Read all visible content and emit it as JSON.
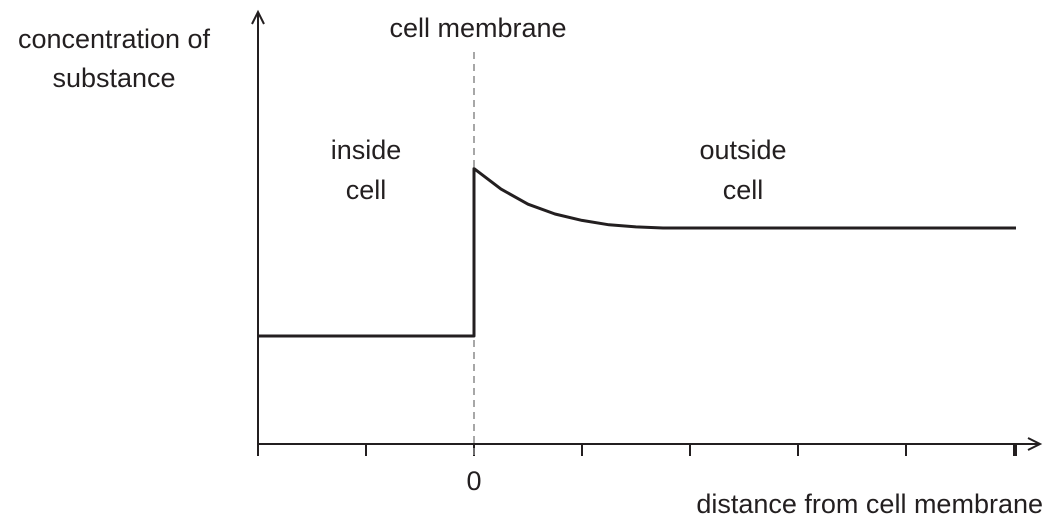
{
  "chart_data": {
    "type": "line",
    "title": "",
    "xlabel": "distance from cell membrane",
    "ylabel_lines": [
      "concentration of",
      "substance"
    ],
    "x_tick_labels": [
      {
        "x": 0,
        "label": "0"
      }
    ],
    "x_ticks": [
      -2,
      -1,
      0,
      1,
      2,
      3,
      4,
      5
    ],
    "xlim": [
      -2,
      5.1
    ],
    "ylim": [
      0,
      4
    ],
    "membrane": {
      "x": 0,
      "label": "cell membrane",
      "style": "dashed",
      "color": "#8a8a8a"
    },
    "regions": [
      {
        "lines": [
          "inside",
          "cell"
        ],
        "x": -1
      },
      {
        "lines": [
          "outside",
          "cell"
        ],
        "x": 2.5
      }
    ],
    "series": [
      {
        "x": [
          -2,
          0,
          0,
          0.25,
          0.5,
          0.75,
          1,
          1.25,
          1.5,
          1.75,
          2,
          3,
          4,
          5
        ],
        "y": [
          1.0,
          1.0,
          2.55,
          2.36,
          2.22,
          2.13,
          2.07,
          2.03,
          2.01,
          2.0,
          2.0,
          2.0,
          2.0,
          2.0
        ]
      }
    ],
    "grid": false,
    "color": "#231f20"
  }
}
